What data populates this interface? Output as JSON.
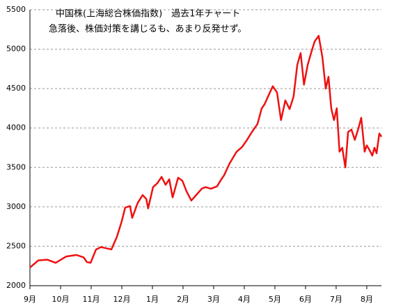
{
  "chart_data": {
    "type": "line",
    "title": "中国株(上海総合株価指数)　過去1年チャート",
    "subtitle": "急落後、株価対策を講じるも、あまり反発せず。",
    "x": [
      0,
      0.27,
      0.57,
      0.84,
      1.18,
      1.52,
      1.75,
      1.86,
      1.98,
      2.16,
      2.32,
      2.66,
      2.84,
      3.0,
      3.11,
      3.27,
      3.34,
      3.52,
      3.68,
      3.8,
      3.86,
      4.02,
      4.16,
      4.3,
      4.43,
      4.55,
      4.66,
      4.84,
      4.98,
      5.11,
      5.27,
      5.43,
      5.61,
      5.73,
      5.91,
      6.11,
      6.25,
      6.34,
      6.52,
      6.75,
      6.93,
      7.09,
      7.25,
      7.43,
      7.57,
      7.66,
      7.8,
      7.93,
      8.07,
      8.2,
      8.34,
      8.48,
      8.61,
      8.73,
      8.84,
      8.95,
      9.07,
      9.18,
      9.3,
      9.43,
      9.55,
      9.66,
      9.75,
      9.84,
      9.93,
      10.02,
      10.11,
      10.2,
      10.3,
      10.39,
      10.5,
      10.61,
      10.73,
      10.82,
      10.93,
      11.0,
      11.09,
      11.18,
      11.25,
      11.32,
      11.41,
      11.48
    ],
    "series": [
      {
        "color": "#ee1111",
        "values": [
          2230,
          2320,
          2330,
          2290,
          2370,
          2390,
          2360,
          2300,
          2290,
          2460,
          2490,
          2460,
          2620,
          2820,
          2990,
          3010,
          2860,
          3050,
          3150,
          3100,
          2980,
          3250,
          3300,
          3380,
          3280,
          3350,
          3120,
          3370,
          3330,
          3200,
          3080,
          3150,
          3230,
          3250,
          3230,
          3260,
          3350,
          3400,
          3550,
          3700,
          3760,
          3850,
          3950,
          4050,
          4250,
          4300,
          4420,
          4530,
          4450,
          4100,
          4350,
          4240,
          4400,
          4800,
          4950,
          4550,
          4800,
          4950,
          5100,
          5170,
          4900,
          4500,
          4650,
          4250,
          4100,
          4250,
          3700,
          3750,
          3500,
          3950,
          3980,
          3850,
          4000,
          4130,
          3700,
          3780,
          3720,
          3650,
          3750,
          3680,
          3930,
          3890
        ]
      }
    ],
    "xlim": [
      0,
      11.48
    ],
    "xticks": [
      {
        "value": 0,
        "label": "9月"
      },
      {
        "value": 1,
        "label": "10月"
      },
      {
        "value": 2,
        "label": "11月"
      },
      {
        "value": 3,
        "label": "12月"
      },
      {
        "value": 4,
        "label": "1月"
      },
      {
        "value": 5,
        "label": "2月"
      },
      {
        "value": 6,
        "label": "3月"
      },
      {
        "value": 7,
        "label": "4月"
      },
      {
        "value": 8,
        "label": "5月"
      },
      {
        "value": 9,
        "label": "6月"
      },
      {
        "value": 10,
        "label": "7月"
      },
      {
        "value": 11,
        "label": "8月"
      }
    ],
    "ylim": [
      2000,
      5500
    ],
    "yticks": [
      2000,
      2500,
      3000,
      3500,
      4000,
      4500,
      5000,
      5500
    ],
    "grid": true
  }
}
